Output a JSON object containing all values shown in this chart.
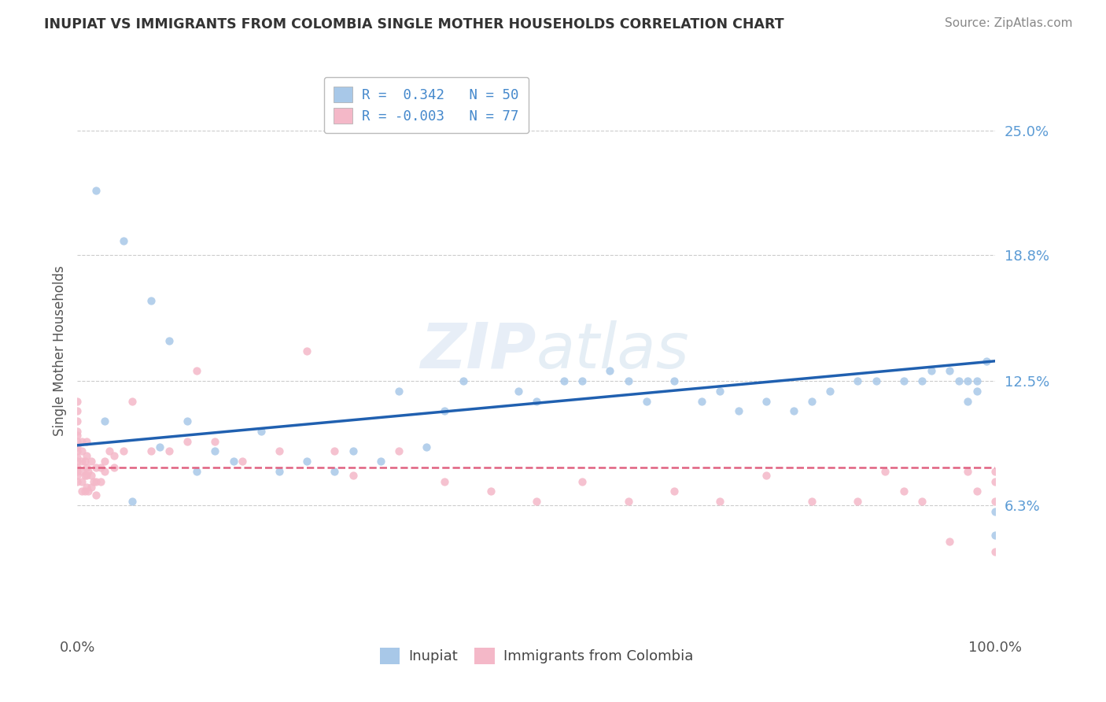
{
  "title": "INUPIAT VS IMMIGRANTS FROM COLOMBIA SINGLE MOTHER HOUSEHOLDS CORRELATION CHART",
  "source": "Source: ZipAtlas.com",
  "ylabel": "Single Mother Households",
  "xlim": [
    0,
    1.0
  ],
  "ylim": [
    0,
    0.28
  ],
  "yticks": [
    0.063,
    0.125,
    0.188,
    0.25
  ],
  "ytick_labels": [
    "6.3%",
    "12.5%",
    "18.8%",
    "25.0%"
  ],
  "xtick_labels": [
    "0.0%",
    "100.0%"
  ],
  "blue_color": "#a8c8e8",
  "pink_color": "#f4b8c8",
  "line_blue": "#2060b0",
  "line_pink": "#e06080",
  "inupiat_x": [
    0.02,
    0.05,
    0.08,
    0.1,
    0.12,
    0.15,
    0.2,
    0.25,
    0.3,
    0.35,
    0.4,
    0.42,
    0.48,
    0.5,
    0.53,
    0.55,
    0.58,
    0.6,
    0.62,
    0.65,
    0.68,
    0.7,
    0.72,
    0.75,
    0.78,
    0.8,
    0.82,
    0.85,
    0.87,
    0.9,
    0.92,
    0.93,
    0.95,
    0.96,
    0.97,
    0.97,
    0.98,
    0.98,
    0.99,
    1.0,
    1.0,
    0.03,
    0.06,
    0.09,
    0.13,
    0.17,
    0.22,
    0.28,
    0.33,
    0.38
  ],
  "inupiat_y": [
    0.22,
    0.195,
    0.165,
    0.145,
    0.105,
    0.09,
    0.1,
    0.085,
    0.09,
    0.12,
    0.11,
    0.125,
    0.12,
    0.115,
    0.125,
    0.125,
    0.13,
    0.125,
    0.115,
    0.125,
    0.115,
    0.12,
    0.11,
    0.115,
    0.11,
    0.115,
    0.12,
    0.125,
    0.125,
    0.125,
    0.125,
    0.13,
    0.13,
    0.125,
    0.125,
    0.115,
    0.125,
    0.12,
    0.135,
    0.06,
    0.048,
    0.105,
    0.065,
    0.092,
    0.08,
    0.085,
    0.08,
    0.08,
    0.085,
    0.092
  ],
  "colombia_x": [
    0.0,
    0.0,
    0.0,
    0.0,
    0.0,
    0.0,
    0.0,
    0.0,
    0.0,
    0.0,
    0.0,
    0.0,
    0.0,
    0.0,
    0.005,
    0.005,
    0.005,
    0.005,
    0.005,
    0.005,
    0.008,
    0.008,
    0.008,
    0.01,
    0.01,
    0.01,
    0.01,
    0.01,
    0.012,
    0.012,
    0.015,
    0.015,
    0.015,
    0.018,
    0.02,
    0.02,
    0.02,
    0.025,
    0.025,
    0.03,
    0.03,
    0.035,
    0.04,
    0.04,
    0.05,
    0.06,
    0.08,
    0.1,
    0.12,
    0.15,
    0.18,
    0.22,
    0.25,
    0.28,
    0.3,
    0.35,
    0.4,
    0.45,
    0.5,
    0.55,
    0.6,
    0.65,
    0.7,
    0.75,
    0.8,
    0.85,
    0.88,
    0.9,
    0.92,
    0.95,
    0.97,
    0.98,
    1.0,
    1.0,
    1.0,
    1.0,
    0.13
  ],
  "colombia_y": [
    0.075,
    0.078,
    0.08,
    0.082,
    0.085,
    0.087,
    0.09,
    0.092,
    0.095,
    0.098,
    0.1,
    0.105,
    0.11,
    0.115,
    0.07,
    0.075,
    0.08,
    0.085,
    0.09,
    0.095,
    0.07,
    0.078,
    0.085,
    0.072,
    0.078,
    0.082,
    0.088,
    0.095,
    0.07,
    0.08,
    0.072,
    0.078,
    0.085,
    0.075,
    0.068,
    0.075,
    0.082,
    0.075,
    0.082,
    0.08,
    0.085,
    0.09,
    0.082,
    0.088,
    0.09,
    0.115,
    0.09,
    0.09,
    0.095,
    0.095,
    0.085,
    0.09,
    0.14,
    0.09,
    0.078,
    0.09,
    0.075,
    0.07,
    0.065,
    0.075,
    0.065,
    0.07,
    0.065,
    0.078,
    0.065,
    0.065,
    0.08,
    0.07,
    0.065,
    0.045,
    0.08,
    0.07,
    0.08,
    0.065,
    0.04,
    0.075,
    0.13
  ],
  "blue_line_x0": 0.0,
  "blue_line_y0": 0.093,
  "blue_line_x1": 1.0,
  "blue_line_y1": 0.135,
  "pink_line_x0": 0.0,
  "pink_line_y0": 0.082,
  "pink_line_x1": 1.0,
  "pink_line_y1": 0.082
}
